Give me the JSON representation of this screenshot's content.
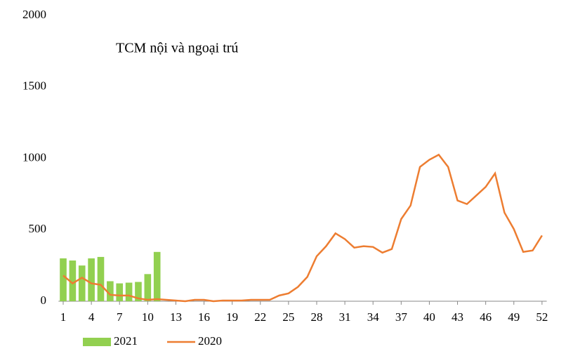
{
  "chart_data": {
    "type": "bar",
    "title": "TCM nội và ngoại trú",
    "categories": [
      1,
      null,
      null,
      4,
      null,
      null,
      7,
      null,
      null,
      10,
      null,
      null,
      13,
      null,
      null,
      16,
      null,
      null,
      19,
      null,
      null,
      22,
      null,
      null,
      25,
      null,
      null,
      28,
      null,
      null,
      31,
      null,
      null,
      34,
      null,
      null,
      37,
      null,
      null,
      40,
      null,
      null,
      43,
      null,
      null,
      46,
      null,
      null,
      49,
      null,
      null,
      52
    ],
    "series": [
      {
        "name": "2021",
        "type": "bar",
        "color": "#92d050",
        "values": [
          300,
          285,
          250,
          300,
          310,
          140,
          125,
          130,
          135,
          190,
          345,
          null,
          null,
          null,
          null,
          null,
          null,
          null,
          null,
          null,
          null,
          null,
          null,
          null,
          null,
          null,
          null,
          null,
          null,
          null,
          null,
          null,
          null,
          null,
          null,
          null,
          null,
          null,
          null,
          null,
          null,
          null,
          null,
          null,
          null,
          null,
          null,
          null,
          null,
          null,
          null,
          null
        ]
      },
      {
        "name": "2020",
        "type": "line",
        "color": "#ed7d31",
        "values": [
          180,
          125,
          165,
          125,
          115,
          45,
          40,
          40,
          20,
          10,
          15,
          10,
          5,
          0,
          10,
          10,
          0,
          5,
          5,
          5,
          10,
          10,
          10,
          40,
          55,
          100,
          170,
          315,
          385,
          475,
          435,
          375,
          385,
          380,
          340,
          365,
          575,
          670,
          940,
          990,
          1025,
          940,
          705,
          680,
          740,
          800,
          895,
          620,
          505,
          345,
          355,
          460
        ]
      }
    ],
    "ylim": [
      0,
      2000
    ],
    "yticks": [
      0,
      500,
      1000,
      1500,
      2000
    ],
    "grid": false
  }
}
